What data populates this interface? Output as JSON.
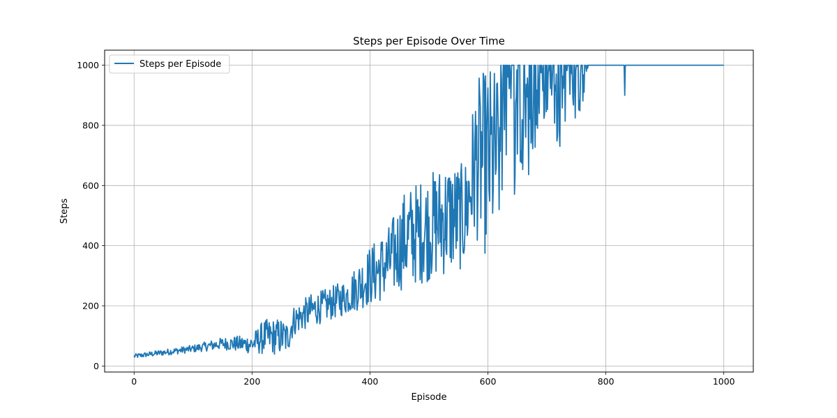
{
  "chart_data": {
    "type": "line",
    "title": "Steps per Episode Over Time",
    "xlabel": "Episode",
    "ylabel": "Steps",
    "xlim": [
      -50,
      1050
    ],
    "ylim": [
      -20,
      1050
    ],
    "xticks": [
      0,
      200,
      400,
      600,
      800,
      1000
    ],
    "yticks": [
      0,
      200,
      400,
      600,
      800,
      1000
    ],
    "xtick_labels": [
      "0",
      "200",
      "400",
      "600",
      "800",
      "1000"
    ],
    "ytick_labels": [
      "0",
      "200",
      "400",
      "600",
      "800",
      "1000"
    ],
    "grid": true,
    "legend": {
      "position": "top-left",
      "entries": [
        "Steps per Episode"
      ]
    },
    "colors": {
      "series": "#1f77b4",
      "grid": "#b0b0b0",
      "axes": "#000000"
    },
    "series": [
      {
        "name": "Steps per Episode",
        "x_start": 0,
        "x_step": 1,
        "x_end": 1000,
        "envelope": {
          "x": [
            0,
            50,
            100,
            150,
            200,
            220,
            250,
            260,
            270,
            300,
            330,
            360,
            400,
            430,
            460,
            500,
            530,
            560,
            580,
            600,
            620,
            640,
            660,
            680,
            700,
            720,
            740,
            760,
            770,
            800,
            830,
            832,
            836,
            900,
            1000
          ],
          "low": [
            25,
            35,
            45,
            55,
            40,
            38,
            35,
            35,
            100,
            130,
            150,
            170,
            200,
            220,
            260,
            280,
            300,
            320,
            420,
            350,
            430,
            500,
            560,
            720,
            850,
            720,
            820,
            810,
            1000,
            1000,
            1000,
            900,
            1000,
            1000,
            1000
          ],
          "high": [
            40,
            55,
            70,
            95,
            105,
            155,
            160,
            150,
            200,
            240,
            260,
            290,
            400,
            460,
            590,
            640,
            690,
            670,
            950,
            1000,
            1000,
            1000,
            1000,
            1000,
            1000,
            1000,
            1000,
            1000,
            1000,
            1000,
            1000,
            1000,
            1000,
            1000,
            1000
          ]
        },
        "final_value": 1000
      }
    ]
  }
}
